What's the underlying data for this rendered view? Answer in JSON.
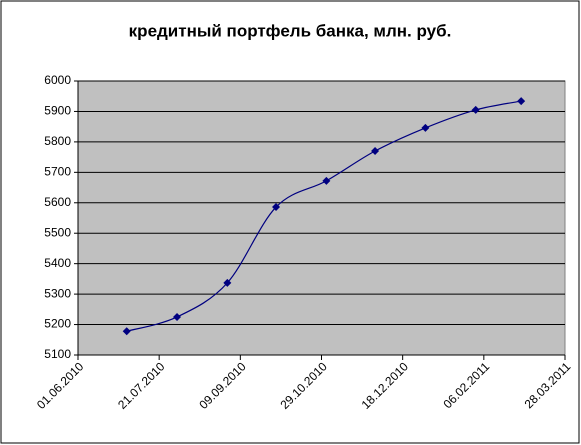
{
  "chart_data": {
    "type": "line",
    "title": "кредитный портфель банка, млн. руб.",
    "x": [
      "2010-07-01",
      "2010-08-01",
      "2010-09-01",
      "2010-10-01",
      "2010-11-01",
      "2010-12-01",
      "2011-01-01",
      "2011-02-01",
      "2011-03-01"
    ],
    "series": [
      {
        "name": "кредитный портфель",
        "color": "#000080",
        "values": [
          5178,
          5225,
          5337,
          5586,
          5672,
          5770,
          5846,
          5905,
          5934
        ]
      }
    ],
    "xlim": [
      "2010-06-01",
      "2011-03-28"
    ],
    "xticks": [
      {
        "value": "2010-06-01",
        "label": "01.06.2010"
      },
      {
        "value": "2010-07-21",
        "label": "21.07.2010"
      },
      {
        "value": "2010-09-09",
        "label": "09.09.2010"
      },
      {
        "value": "2010-10-29",
        "label": "29.10.2010"
      },
      {
        "value": "2010-12-18",
        "label": "18.12.2010"
      },
      {
        "value": "2011-02-06",
        "label": "06.02.2011"
      },
      {
        "value": "2011-03-28",
        "label": "28.03.2011"
      }
    ],
    "ylim": [
      5100,
      6000
    ],
    "yticks": [
      5100,
      5200,
      5300,
      5400,
      5500,
      5600,
      5700,
      5800,
      5900,
      6000
    ],
    "grid": true,
    "smooth": true
  }
}
